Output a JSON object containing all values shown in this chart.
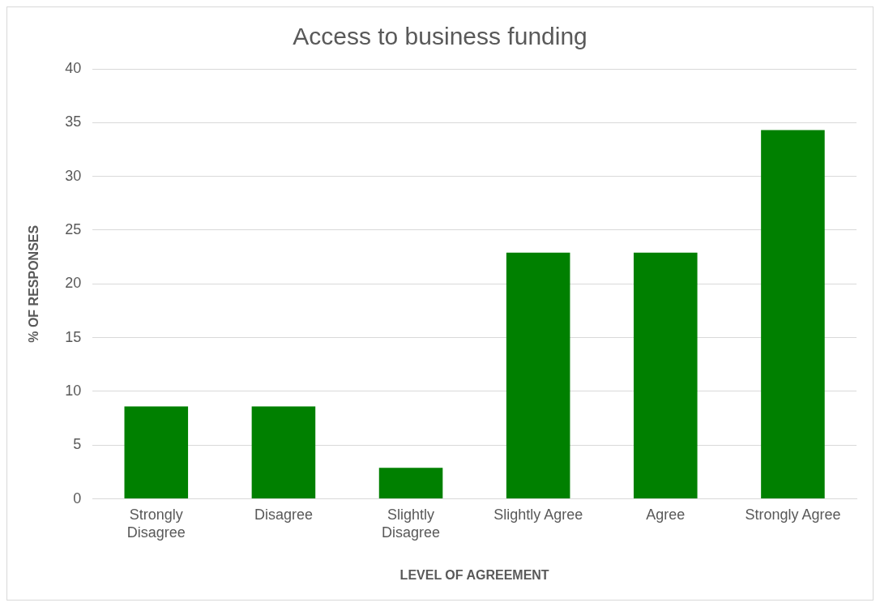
{
  "chart_data": {
    "type": "bar",
    "title": "Access to business funding",
    "xlabel": "LEVEL OF AGREEMENT",
    "ylabel": "% OF RESPONSES",
    "categories": [
      "Strongly Disagree",
      "Disagree",
      "Slightly Disagree",
      "Slightly Agree",
      "Agree",
      "Strongly Agree"
    ],
    "values": [
      8.6,
      8.6,
      2.9,
      22.9,
      22.9,
      34.3
    ],
    "color": "#008000",
    "ylim": [
      0,
      40
    ],
    "yticks": [
      0,
      5,
      10,
      15,
      20,
      25,
      30,
      35,
      40
    ],
    "grid": "y",
    "legend": false
  }
}
